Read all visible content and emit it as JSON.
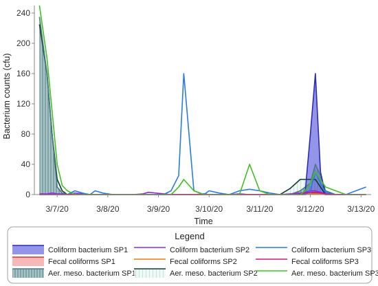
{
  "chart_data": {
    "type": "area",
    "xlabel": "Time",
    "ylabel": "Bacterium counts (cfu)",
    "x_tick_labels": [
      "3/7/20",
      "3/8/20",
      "3/9/20",
      "3/10/20",
      "3/11/20",
      "3/12/20",
      "3/13/20"
    ],
    "x_ticks": [
      0,
      1,
      2,
      3,
      4,
      5,
      6
    ],
    "xlim": [
      -0.45,
      6.2
    ],
    "y_ticks": [
      0,
      40,
      80,
      120,
      160,
      200,
      240
    ],
    "ylim": [
      0,
      250
    ],
    "grid": false,
    "legend": {
      "title": "Legend",
      "position": "bottom"
    },
    "x": [
      -0.35,
      -0.2,
      -0.1,
      0,
      0.1,
      0.2,
      0.35,
      0.5,
      0.65,
      0.75,
      0.9,
      1.1,
      1.3,
      1.5,
      1.7,
      1.8,
      1.95,
      2.1,
      2.25,
      2.4,
      2.5,
      2.7,
      2.9,
      3.0,
      3.2,
      3.4,
      3.6,
      3.8,
      4.0,
      4.2,
      4.4,
      4.6,
      4.8,
      4.9,
      5.0,
      5.1,
      5.2,
      5.3,
      5.5,
      5.7,
      5.9,
      6.1
    ],
    "series": [
      {
        "name": "Coliform bacterium SP1",
        "color": "#2a2ab8",
        "style": "solid-fill",
        "values": [
          0,
          0,
          0,
          0,
          0,
          0,
          0,
          0,
          0,
          0,
          0,
          0,
          0,
          0,
          0,
          0,
          0,
          0,
          0,
          0,
          0,
          0,
          0,
          0,
          0,
          0,
          0,
          0,
          0,
          0,
          0,
          0,
          0,
          5,
          80,
          160,
          30,
          0,
          0,
          0,
          0,
          0
        ]
      },
      {
        "name": "Fecal coliforms SP1",
        "color": "#d93030",
        "style": "solid-fill",
        "values": [
          0,
          0,
          0,
          0,
          0,
          0,
          0,
          0,
          0,
          0,
          0,
          0,
          0,
          0,
          0,
          0,
          0,
          0,
          0,
          0,
          0,
          0,
          0,
          0,
          0,
          0,
          0,
          0,
          0,
          0,
          0,
          0,
          0,
          0,
          1,
          2,
          1,
          0,
          0,
          0,
          0,
          0
        ]
      },
      {
        "name": "Aer. meso. bacterium SP1",
        "color": "#4a7a80",
        "style": "hatch-fill",
        "values": [
          235,
          160,
          80,
          10,
          2,
          0,
          0,
          0,
          0,
          0,
          0,
          0,
          0,
          0,
          0,
          0,
          0,
          0,
          0,
          0,
          0,
          0,
          0,
          0,
          0,
          0,
          0,
          0,
          0,
          0,
          0,
          0,
          5,
          10,
          15,
          40,
          25,
          5,
          0,
          0,
          0,
          0
        ]
      },
      {
        "name": "Coliform bacterium SP2",
        "color": "#8a2be2",
        "style": "line",
        "values": [
          1,
          1,
          2,
          1,
          1,
          0,
          2,
          1,
          0,
          0,
          0,
          0,
          0,
          0,
          1,
          3,
          2,
          1,
          0,
          0,
          0,
          0,
          1,
          0,
          0,
          0,
          1,
          0,
          0,
          0,
          0,
          1,
          2,
          3,
          5,
          5,
          3,
          1,
          0,
          0,
          0,
          0
        ]
      },
      {
        "name": "Fecal coliforms SP2",
        "color": "#e87a10",
        "style": "line",
        "values": [
          0,
          0,
          0,
          0,
          0,
          0,
          0,
          0,
          0,
          0,
          0,
          0,
          0,
          0,
          0,
          0,
          0,
          0,
          0,
          0,
          0,
          0,
          0,
          0,
          0,
          0,
          0,
          0,
          0,
          0,
          0,
          0,
          0,
          0,
          1,
          1,
          1,
          0,
          0,
          0,
          0,
          0
        ]
      },
      {
        "name": "Aer. meso. bacterium SP2",
        "color": "#0f3b30",
        "style": "line-hatch",
        "values": [
          225,
          160,
          80,
          20,
          5,
          0,
          0,
          0,
          0,
          0,
          0,
          0,
          0,
          0,
          0,
          0,
          0,
          0,
          0,
          0,
          0,
          0,
          0,
          0,
          0,
          0,
          0,
          0,
          0,
          0,
          0,
          8,
          20,
          20,
          20,
          20,
          10,
          0,
          0,
          0,
          0,
          0
        ]
      },
      {
        "name": "Coliform bacterium SP3",
        "color": "#2a7ae0",
        "style": "line",
        "values": [
          0,
          0,
          0,
          0,
          0,
          0,
          5,
          2,
          0,
          5,
          2,
          0,
          0,
          0,
          0,
          0,
          0,
          0,
          5,
          25,
          160,
          5,
          0,
          5,
          2,
          0,
          5,
          7,
          5,
          2,
          0,
          0,
          0,
          0,
          5,
          30,
          15,
          3,
          0,
          0,
          5,
          10
        ]
      },
      {
        "name": "Fecal coliforms SP3",
        "color": "#c71585",
        "style": "line",
        "values": [
          0,
          0,
          0,
          0,
          0,
          0,
          0,
          0,
          0,
          0,
          0,
          0,
          0,
          0,
          0,
          0,
          0,
          0,
          0,
          0,
          0,
          0,
          0,
          0,
          0,
          0,
          0,
          0,
          0,
          0,
          0,
          0,
          1,
          2,
          3,
          3,
          2,
          1,
          0,
          0,
          0,
          0
        ]
      },
      {
        "name": "Aer. meso. bacterium SP3",
        "color": "#40c020",
        "style": "line",
        "values": [
          250,
          180,
          110,
          40,
          12,
          5,
          0,
          0,
          0,
          0,
          0,
          0,
          0,
          0,
          0,
          0,
          0,
          0,
          0,
          10,
          20,
          5,
          0,
          0,
          0,
          0,
          0,
          40,
          5,
          0,
          0,
          0,
          0,
          5,
          15,
          30,
          20,
          10,
          5,
          0,
          0,
          0
        ]
      }
    ]
  }
}
